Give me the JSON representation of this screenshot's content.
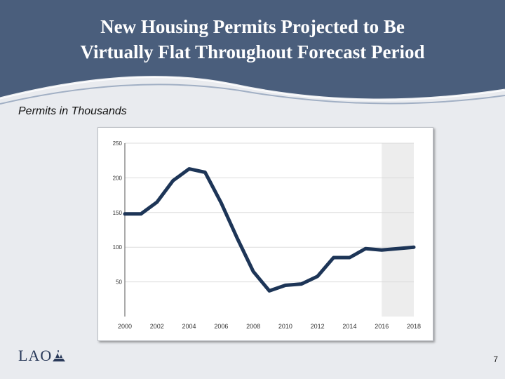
{
  "slide": {
    "title_line1": "New Housing Permits Projected to Be",
    "title_line2": "Virtually Flat Throughout Forecast Period",
    "subtitle": "Permits in Thousands",
    "logo_text": "LAO",
    "page_number": "7"
  },
  "colors": {
    "header_bg": "#4a5e7c",
    "line": "#1d3557",
    "forecast_shade": "#ededed",
    "grid": "#dcdcdc"
  },
  "chart_data": {
    "type": "line",
    "title": "",
    "xlabel": "",
    "ylabel": "Permits in Thousands",
    "xlim": [
      2000,
      2018
    ],
    "ylim": [
      0,
      250
    ],
    "x_ticks": [
      "2000",
      "2002",
      "2004",
      "2006",
      "2008",
      "2010",
      "2012",
      "2014",
      "2016",
      "2018"
    ],
    "y_ticks": [
      "50",
      "100",
      "150",
      "200",
      "250"
    ],
    "grid": true,
    "forecast_region": [
      2016,
      2018
    ],
    "series": [
      {
        "name": "New Housing Permits",
        "x": [
          2000,
          2001,
          2002,
          2003,
          2004,
          2005,
          2006,
          2007,
          2008,
          2009,
          2010,
          2011,
          2012,
          2013,
          2014,
          2015,
          2016,
          2017,
          2018
        ],
        "values": [
          148,
          148,
          165,
          196,
          213,
          208,
          164,
          113,
          65,
          37,
          45,
          47,
          58,
          85,
          85,
          98,
          96,
          98,
          100
        ]
      }
    ]
  }
}
